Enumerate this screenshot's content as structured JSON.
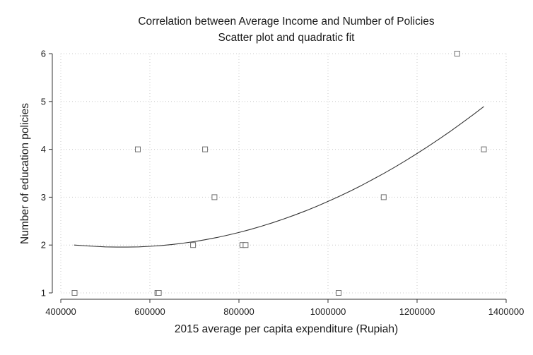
{
  "chart_data": {
    "type": "scatter",
    "title": "Correlation between Average Income and Number of Policies",
    "subtitle": "Scatter plot and quadratic fit",
    "xlabel": "2015 average per capita expenditure (Rupiah)",
    "ylabel": "Number of education policies",
    "xlim": [
      400000,
      1400000
    ],
    "ylim": [
      1,
      6
    ],
    "xticks": [
      400000,
      600000,
      800000,
      1000000,
      1200000,
      1400000
    ],
    "yticks": [
      1,
      2,
      3,
      4,
      5,
      6
    ],
    "xtick_labels": [
      "400000",
      "600000",
      "800000",
      "1000000",
      "1200000",
      "1400000"
    ],
    "ytick_labels": [
      "1",
      "2",
      "3",
      "4",
      "5",
      "6"
    ],
    "grid": true,
    "series": [
      {
        "type": "scatter",
        "x": [
          431000,
          573000,
          617000,
          620000,
          697000,
          724000,
          745000,
          808000,
          815000,
          1024000,
          1125000,
          1290000,
          1350000
        ],
        "y": [
          1,
          4,
          1,
          1,
          2,
          4,
          3,
          2,
          2,
          1,
          3,
          6,
          4
        ]
      },
      {
        "type": "line",
        "x": [
          430000,
          450000,
          475000,
          500000,
          525000,
          550000,
          575000,
          600000,
          625000,
          650000,
          675000,
          700000,
          725000,
          750000,
          775000,
          800000,
          825000,
          850000,
          875000,
          900000,
          925000,
          950000,
          975000,
          1000000,
          1025000,
          1050000,
          1075000,
          1100000,
          1125000,
          1150000,
          1175000,
          1200000,
          1225000,
          1250000,
          1275000,
          1300000,
          1325000,
          1350000
        ],
        "y": [
          2.0,
          1.988,
          1.974,
          1.962,
          1.957,
          1.957,
          1.962,
          1.973,
          1.989,
          2.012,
          2.04,
          2.073,
          2.112,
          2.157,
          2.208,
          2.263,
          2.325,
          2.392,
          2.465,
          2.543,
          2.627,
          2.716,
          2.811,
          2.911,
          3.017,
          3.128,
          3.245,
          3.368,
          3.496,
          3.629,
          3.768,
          3.913,
          4.063,
          4.218,
          4.379,
          4.546,
          4.718,
          4.895
        ]
      }
    ]
  }
}
